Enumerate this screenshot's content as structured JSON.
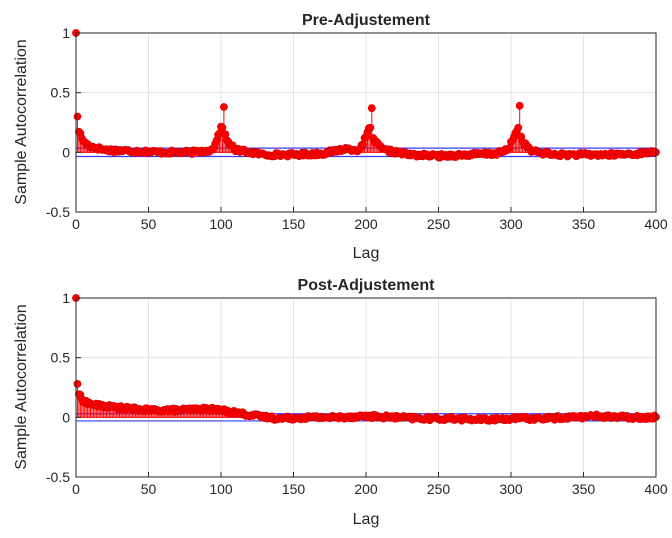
{
  "chart_data": [
    {
      "type": "stem",
      "title": "Pre-Adjustement",
      "xlabel": "Lag",
      "ylabel": "Sample Autocorrelation",
      "xlim": [
        0,
        400
      ],
      "ylim": [
        -0.5,
        1
      ],
      "xticks": [
        "0",
        "50",
        "100",
        "150",
        "200",
        "250",
        "300",
        "350",
        "400"
      ],
      "yticks": [
        "-0.5",
        "0",
        "0.5",
        "1"
      ],
      "grid": true,
      "confidence_bounds": [
        0.035,
        -0.035
      ],
      "colors": {
        "stem": "#ff0000",
        "bounds": "#3b3bff"
      },
      "series": {
        "peaks": [
          {
            "lag": 0,
            "value": 1.0
          },
          {
            "lag": 1,
            "value": 0.3
          },
          {
            "lag": 102,
            "value": 0.38
          },
          {
            "lag": 204,
            "value": 0.37
          },
          {
            "lag": 306,
            "value": 0.39
          }
        ],
        "segments": [
          {
            "lag": 2,
            "value": 0.18
          },
          {
            "lag": 4,
            "value": 0.12
          },
          {
            "lag": 6,
            "value": 0.08
          },
          {
            "lag": 10,
            "value": 0.05
          },
          {
            "lag": 20,
            "value": 0.02
          },
          {
            "lag": 40,
            "value": 0.01
          },
          {
            "lag": 60,
            "value": 0.0
          },
          {
            "lag": 80,
            "value": 0.0
          },
          {
            "lag": 94,
            "value": 0.02
          },
          {
            "lag": 100,
            "value": 0.2
          },
          {
            "lag": 101,
            "value": 0.22
          },
          {
            "lag": 104,
            "value": 0.1
          },
          {
            "lag": 110,
            "value": 0.02
          },
          {
            "lag": 130,
            "value": -0.02
          },
          {
            "lag": 150,
            "value": -0.02
          },
          {
            "lag": 170,
            "value": -0.01
          },
          {
            "lag": 186,
            "value": 0.03
          },
          {
            "lag": 196,
            "value": 0.02
          },
          {
            "lag": 202,
            "value": 0.19
          },
          {
            "lag": 203,
            "value": 0.2
          },
          {
            "lag": 206,
            "value": 0.09
          },
          {
            "lag": 212,
            "value": 0.02
          },
          {
            "lag": 230,
            "value": -0.02
          },
          {
            "lag": 250,
            "value": -0.03
          },
          {
            "lag": 270,
            "value": -0.02
          },
          {
            "lag": 290,
            "value": -0.01
          },
          {
            "lag": 298,
            "value": 0.02
          },
          {
            "lag": 304,
            "value": 0.19
          },
          {
            "lag": 305,
            "value": 0.2
          },
          {
            "lag": 308,
            "value": 0.09
          },
          {
            "lag": 314,
            "value": 0.01
          },
          {
            "lag": 330,
            "value": -0.02
          },
          {
            "lag": 350,
            "value": -0.02
          },
          {
            "lag": 370,
            "value": -0.02
          },
          {
            "lag": 390,
            "value": -0.01
          },
          {
            "lag": 400,
            "value": 0.01
          }
        ]
      }
    },
    {
      "type": "stem",
      "title": "Post-Adjustement",
      "xlabel": "Lag",
      "ylabel": "Sample Autocorrelation",
      "xlim": [
        0,
        400
      ],
      "ylim": [
        -0.5,
        1
      ],
      "xticks": [
        "0",
        "50",
        "100",
        "150",
        "200",
        "250",
        "300",
        "350",
        "400"
      ],
      "yticks": [
        "-0.5",
        "0",
        "0.5",
        "1"
      ],
      "grid": true,
      "confidence_bounds": [
        0.03,
        -0.03
      ],
      "colors": {
        "stem": "#ff0000",
        "bounds": "#3b3bff"
      },
      "series": {
        "peaks": [
          {
            "lag": 0,
            "value": 1.0
          },
          {
            "lag": 1,
            "value": 0.28
          }
        ],
        "segments": [
          {
            "lag": 2,
            "value": 0.2
          },
          {
            "lag": 4,
            "value": 0.15
          },
          {
            "lag": 8,
            "value": 0.12
          },
          {
            "lag": 15,
            "value": 0.1
          },
          {
            "lag": 30,
            "value": 0.08
          },
          {
            "lag": 50,
            "value": 0.06
          },
          {
            "lag": 70,
            "value": 0.06
          },
          {
            "lag": 90,
            "value": 0.07
          },
          {
            "lag": 100,
            "value": 0.06
          },
          {
            "lag": 110,
            "value": 0.04
          },
          {
            "lag": 125,
            "value": 0.01
          },
          {
            "lag": 140,
            "value": -0.01
          },
          {
            "lag": 160,
            "value": 0.0
          },
          {
            "lag": 180,
            "value": 0.0
          },
          {
            "lag": 200,
            "value": 0.01
          },
          {
            "lag": 220,
            "value": 0.0
          },
          {
            "lag": 240,
            "value": -0.01
          },
          {
            "lag": 260,
            "value": -0.01
          },
          {
            "lag": 280,
            "value": -0.02
          },
          {
            "lag": 300,
            "value": -0.01
          },
          {
            "lag": 320,
            "value": -0.01
          },
          {
            "lag": 340,
            "value": 0.0
          },
          {
            "lag": 360,
            "value": 0.01
          },
          {
            "lag": 380,
            "value": 0.0
          },
          {
            "lag": 400,
            "value": 0.0
          }
        ]
      }
    }
  ]
}
